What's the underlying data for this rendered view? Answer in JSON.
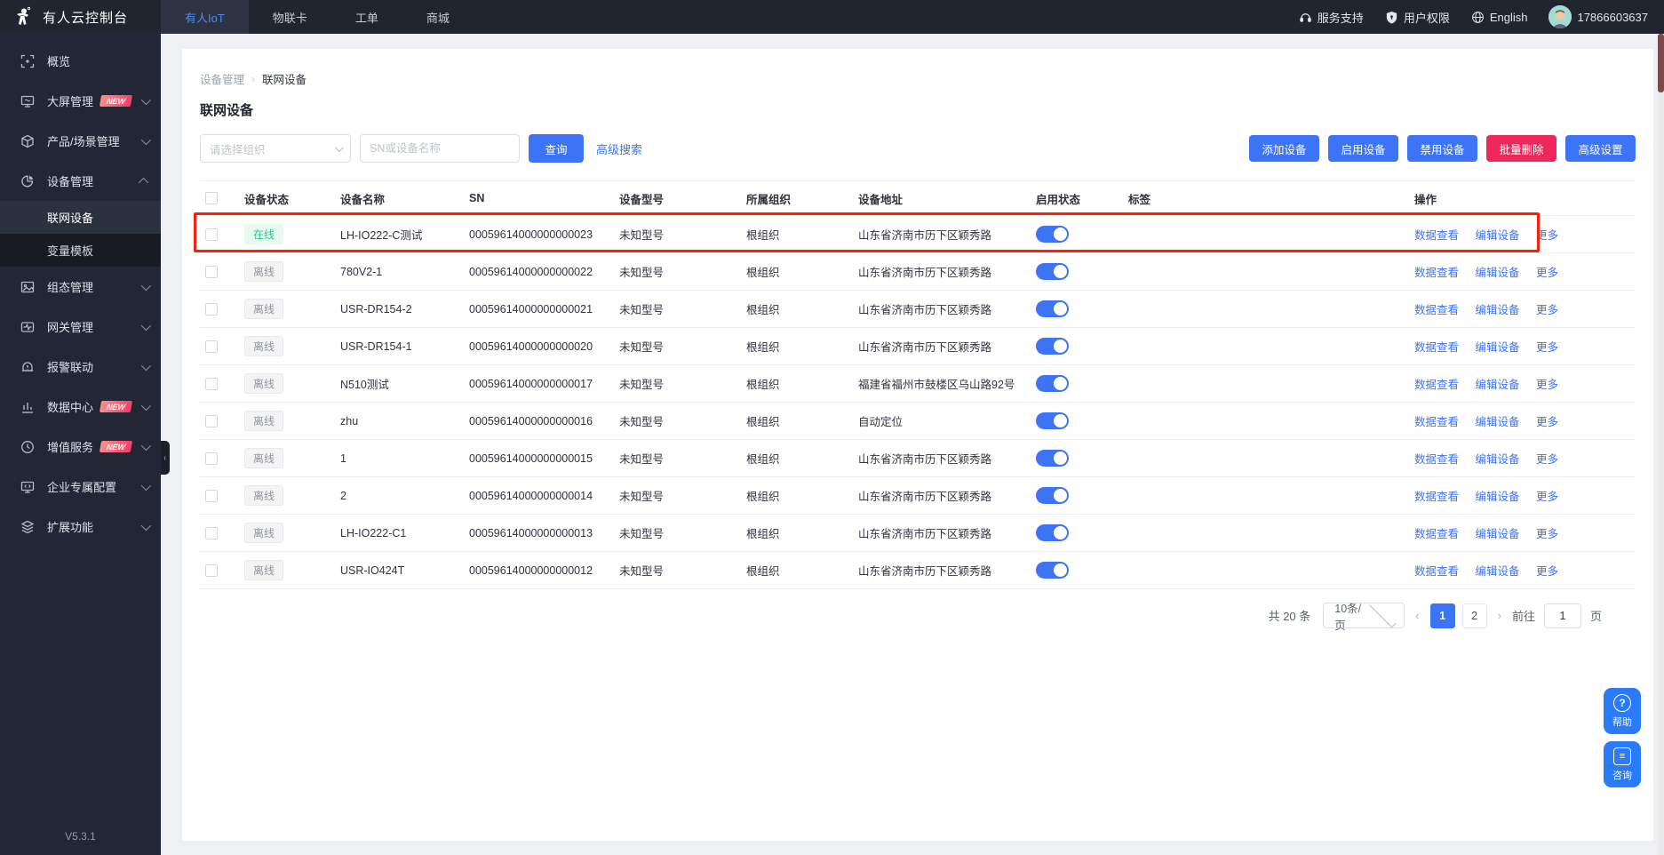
{
  "app": {
    "title": "有人云控制台",
    "version": "V5.3.1"
  },
  "topbar": {
    "tabs": [
      {
        "label": "有人IoT",
        "active": true
      },
      {
        "label": "物联卡",
        "active": false
      },
      {
        "label": "工单",
        "active": false
      },
      {
        "label": "商城",
        "active": false
      }
    ],
    "support": "服务支持",
    "permissions": "用户权限",
    "language": "English",
    "phone": "17866603637"
  },
  "sidebar": {
    "items": [
      {
        "label": "概览",
        "icon": "overview-icon",
        "expandable": false
      },
      {
        "label": "大屏管理",
        "icon": "screen-icon",
        "badge": "NEW",
        "expandable": true
      },
      {
        "label": "产品/场景管理",
        "icon": "product-icon",
        "expandable": true
      },
      {
        "label": "设备管理",
        "icon": "device-icon",
        "expandable": true,
        "expanded": true,
        "children": [
          {
            "label": "联网设备",
            "active": true,
            "dark": false
          },
          {
            "label": "变量模板",
            "active": false,
            "dark": true
          }
        ]
      },
      {
        "label": "组态管理",
        "icon": "scada-icon",
        "expandable": true
      },
      {
        "label": "网关管理",
        "icon": "gateway-icon",
        "expandable": true
      },
      {
        "label": "报警联动",
        "icon": "alarm-icon",
        "expandable": true
      },
      {
        "label": "数据中心",
        "icon": "data-icon",
        "badge": "NEW",
        "expandable": true
      },
      {
        "label": "增值服务",
        "icon": "vas-icon",
        "badge": "NEW",
        "expandable": true
      },
      {
        "label": "企业专属配置",
        "icon": "enterprise-icon",
        "expandable": true
      },
      {
        "label": "扩展功能",
        "icon": "extension-icon",
        "expandable": true
      }
    ]
  },
  "breadcrumb": {
    "parent": "设备管理",
    "separator": "›",
    "current": "联网设备"
  },
  "page_title": "联网设备",
  "filters": {
    "org_placeholder": "请选择组织",
    "search_placeholder": "SN或设备名称",
    "query_label": "查询",
    "advanced_label": "高级搜索"
  },
  "bulk_actions": [
    {
      "label": "添加设备",
      "style": "blue"
    },
    {
      "label": "启用设备",
      "style": "blue"
    },
    {
      "label": "禁用设备",
      "style": "blue"
    },
    {
      "label": "批量删除",
      "style": "pink"
    },
    {
      "label": "高级设置",
      "style": "blue"
    }
  ],
  "table": {
    "columns": [
      "设备状态",
      "设备名称",
      "SN",
      "设备型号",
      "所属组织",
      "设备地址",
      "启用状态",
      "标签",
      "操作"
    ],
    "row_actions": [
      "数据查看",
      "编辑设备",
      "更多"
    ],
    "rows": [
      {
        "status": "在线",
        "online": true,
        "name": "LH-IO222-C测试",
        "sn": "00059614000000000023",
        "model": "未知型号",
        "org": "根组织",
        "address": "山东省济南市历下区颖秀路",
        "enabled": true,
        "tag": "",
        "highlighted": true
      },
      {
        "status": "离线",
        "online": false,
        "name": "780V2-1",
        "sn": "00059614000000000022",
        "model": "未知型号",
        "org": "根组织",
        "address": "山东省济南市历下区颖秀路",
        "enabled": true,
        "tag": "",
        "highlighted": false
      },
      {
        "status": "离线",
        "online": false,
        "name": "USR-DR154-2",
        "sn": "00059614000000000021",
        "model": "未知型号",
        "org": "根组织",
        "address": "山东省济南市历下区颖秀路",
        "enabled": true,
        "tag": "",
        "highlighted": false
      },
      {
        "status": "离线",
        "online": false,
        "name": "USR-DR154-1",
        "sn": "00059614000000000020",
        "model": "未知型号",
        "org": "根组织",
        "address": "山东省济南市历下区颖秀路",
        "enabled": true,
        "tag": "",
        "highlighted": false
      },
      {
        "status": "离线",
        "online": false,
        "name": "N510测试",
        "sn": "00059614000000000017",
        "model": "未知型号",
        "org": "根组织",
        "address": "福建省福州市鼓楼区乌山路92号",
        "enabled": true,
        "tag": "",
        "highlighted": false
      },
      {
        "status": "离线",
        "online": false,
        "name": "zhu",
        "sn": "00059614000000000016",
        "model": "未知型号",
        "org": "根组织",
        "address": "自动定位",
        "enabled": true,
        "tag": "",
        "highlighted": false
      },
      {
        "status": "离线",
        "online": false,
        "name": "1",
        "sn": "00059614000000000015",
        "model": "未知型号",
        "org": "根组织",
        "address": "山东省济南市历下区颖秀路",
        "enabled": true,
        "tag": "",
        "highlighted": false
      },
      {
        "status": "离线",
        "online": false,
        "name": "2",
        "sn": "00059614000000000014",
        "model": "未知型号",
        "org": "根组织",
        "address": "山东省济南市历下区颖秀路",
        "enabled": true,
        "tag": "",
        "highlighted": false
      },
      {
        "status": "离线",
        "online": false,
        "name": "LH-IO222-C1",
        "sn": "00059614000000000013",
        "model": "未知型号",
        "org": "根组织",
        "address": "山东省济南市历下区颖秀路",
        "enabled": true,
        "tag": "",
        "highlighted": false
      },
      {
        "status": "离线",
        "online": false,
        "name": "USR-IO424T",
        "sn": "00059614000000000012",
        "model": "未知型号",
        "org": "根组织",
        "address": "山东省济南市历下区颖秀路",
        "enabled": true,
        "tag": "",
        "highlighted": false
      }
    ]
  },
  "pagination": {
    "total_text": "共 20 条",
    "page_size": "10条/页",
    "prev": "‹",
    "next": "›",
    "pages": [
      "1",
      "2"
    ],
    "active_page": "1",
    "goto_label": "前往",
    "goto_value": "1",
    "page_unit": "页"
  },
  "floating": {
    "help": "帮助",
    "help_icon": "?",
    "consult": "咨询"
  },
  "colors": {
    "primary_blue": "#3c74f5",
    "danger_pink": "#f0275c",
    "online_green": "#2fc48d",
    "annotation_red": "#f5220d",
    "topbar_dark": "#21252f",
    "sidebar_dark": "#232735"
  }
}
